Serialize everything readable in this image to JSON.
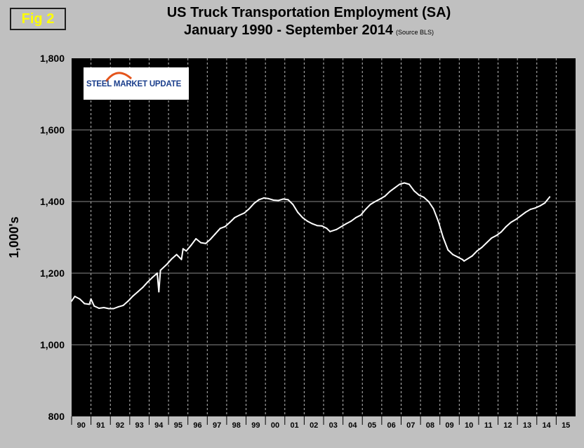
{
  "figure": {
    "badge": "Fig 2"
  },
  "chart_data": {
    "type": "line",
    "title": "US Truck Transportation Employment (SA)",
    "subtitle": "January 1990 - September 2014",
    "source_note": "(Source BLS)",
    "ylabel": "1,000's",
    "xlabel": "",
    "ylim": [
      800,
      1800
    ],
    "yticks": [
      "800",
      "1,000",
      "1,200",
      "1,400",
      "1,600",
      "1,800"
    ],
    "xlim": [
      "1990-01",
      "2015-12"
    ],
    "xtick_labels": [
      "90",
      "91",
      "92",
      "93",
      "94",
      "95",
      "96",
      "97",
      "98",
      "99",
      "00",
      "01",
      "02",
      "03",
      "04",
      "05",
      "06",
      "07",
      "08",
      "09",
      "10",
      "11",
      "12",
      "13",
      "14",
      "15"
    ],
    "grid": {
      "horizontal": true,
      "vertical_dashed": true
    },
    "colors": {
      "plot_background": "#000000",
      "line": "#ffffff",
      "page_background": "#c0c0c0",
      "badge_text": "#ffff00"
    },
    "series": [
      {
        "points": [
          [
            "1990-01",
            1122
          ],
          [
            "1990-03",
            1135
          ],
          [
            "1990-06",
            1128
          ],
          [
            "1990-09",
            1115
          ],
          [
            "1990-12",
            1113
          ],
          [
            "1991-01",
            1128
          ],
          [
            "1991-03",
            1108
          ],
          [
            "1991-06",
            1102
          ],
          [
            "1991-09",
            1104
          ],
          [
            "1991-12",
            1101
          ],
          [
            "1992-03",
            1101
          ],
          [
            "1992-06",
            1106
          ],
          [
            "1992-09",
            1110
          ],
          [
            "1992-12",
            1122
          ],
          [
            "1993-03",
            1136
          ],
          [
            "1993-06",
            1148
          ],
          [
            "1993-09",
            1160
          ],
          [
            "1993-12",
            1175
          ],
          [
            "1994-03",
            1188
          ],
          [
            "1994-06",
            1200
          ],
          [
            "1994-07",
            1148
          ],
          [
            "1994-08",
            1208
          ],
          [
            "1994-12",
            1225
          ],
          [
            "1995-03",
            1240
          ],
          [
            "1995-06",
            1252
          ],
          [
            "1995-09",
            1238
          ],
          [
            "1995-10",
            1268
          ],
          [
            "1995-12",
            1262
          ],
          [
            "1996-03",
            1278
          ],
          [
            "1996-06",
            1296
          ],
          [
            "1996-09",
            1285
          ],
          [
            "1996-12",
            1283
          ],
          [
            "1997-03",
            1295
          ],
          [
            "1997-06",
            1310
          ],
          [
            "1997-09",
            1325
          ],
          [
            "1997-12",
            1330
          ],
          [
            "1998-03",
            1342
          ],
          [
            "1998-06",
            1355
          ],
          [
            "1998-09",
            1362
          ],
          [
            "1998-12",
            1368
          ],
          [
            "1999-03",
            1380
          ],
          [
            "1999-06",
            1395
          ],
          [
            "1999-09",
            1405
          ],
          [
            "1999-12",
            1410
          ],
          [
            "2000-03",
            1408
          ],
          [
            "2000-06",
            1404
          ],
          [
            "2000-09",
            1403
          ],
          [
            "2000-12",
            1407
          ],
          [
            "2001-03",
            1405
          ],
          [
            "2001-06",
            1392
          ],
          [
            "2001-09",
            1370
          ],
          [
            "2001-12",
            1355
          ],
          [
            "2002-03",
            1345
          ],
          [
            "2002-06",
            1338
          ],
          [
            "2002-09",
            1333
          ],
          [
            "2002-12",
            1332
          ],
          [
            "2003-03",
            1325
          ],
          [
            "2003-05",
            1316
          ],
          [
            "2003-09",
            1322
          ],
          [
            "2003-12",
            1330
          ],
          [
            "2004-03",
            1338
          ],
          [
            "2004-06",
            1345
          ],
          [
            "2004-09",
            1355
          ],
          [
            "2004-12",
            1362
          ],
          [
            "2005-03",
            1378
          ],
          [
            "2005-06",
            1392
          ],
          [
            "2005-09",
            1400
          ],
          [
            "2005-12",
            1407
          ],
          [
            "2006-03",
            1415
          ],
          [
            "2006-06",
            1428
          ],
          [
            "2006-09",
            1438
          ],
          [
            "2006-12",
            1448
          ],
          [
            "2007-03",
            1452
          ],
          [
            "2007-06",
            1448
          ],
          [
            "2007-09",
            1430
          ],
          [
            "2007-12",
            1418
          ],
          [
            "2008-03",
            1412
          ],
          [
            "2008-06",
            1400
          ],
          [
            "2008-09",
            1380
          ],
          [
            "2008-12",
            1345
          ],
          [
            "2009-03",
            1300
          ],
          [
            "2009-06",
            1265
          ],
          [
            "2009-09",
            1252
          ],
          [
            "2009-12",
            1245
          ],
          [
            "2010-03",
            1238
          ],
          [
            "2010-04",
            1234
          ],
          [
            "2010-09",
            1248
          ],
          [
            "2010-12",
            1262
          ],
          [
            "2011-03",
            1272
          ],
          [
            "2011-06",
            1285
          ],
          [
            "2011-09",
            1298
          ],
          [
            "2011-12",
            1305
          ],
          [
            "2012-03",
            1315
          ],
          [
            "2012-06",
            1330
          ],
          [
            "2012-09",
            1342
          ],
          [
            "2012-12",
            1350
          ],
          [
            "2013-03",
            1360
          ],
          [
            "2013-06",
            1370
          ],
          [
            "2013-09",
            1378
          ],
          [
            "2013-12",
            1382
          ],
          [
            "2014-03",
            1388
          ],
          [
            "2014-06",
            1396
          ],
          [
            "2014-09",
            1413
          ]
        ]
      }
    ]
  },
  "logo": {
    "text": "STEEL MARKET UPDATE"
  }
}
